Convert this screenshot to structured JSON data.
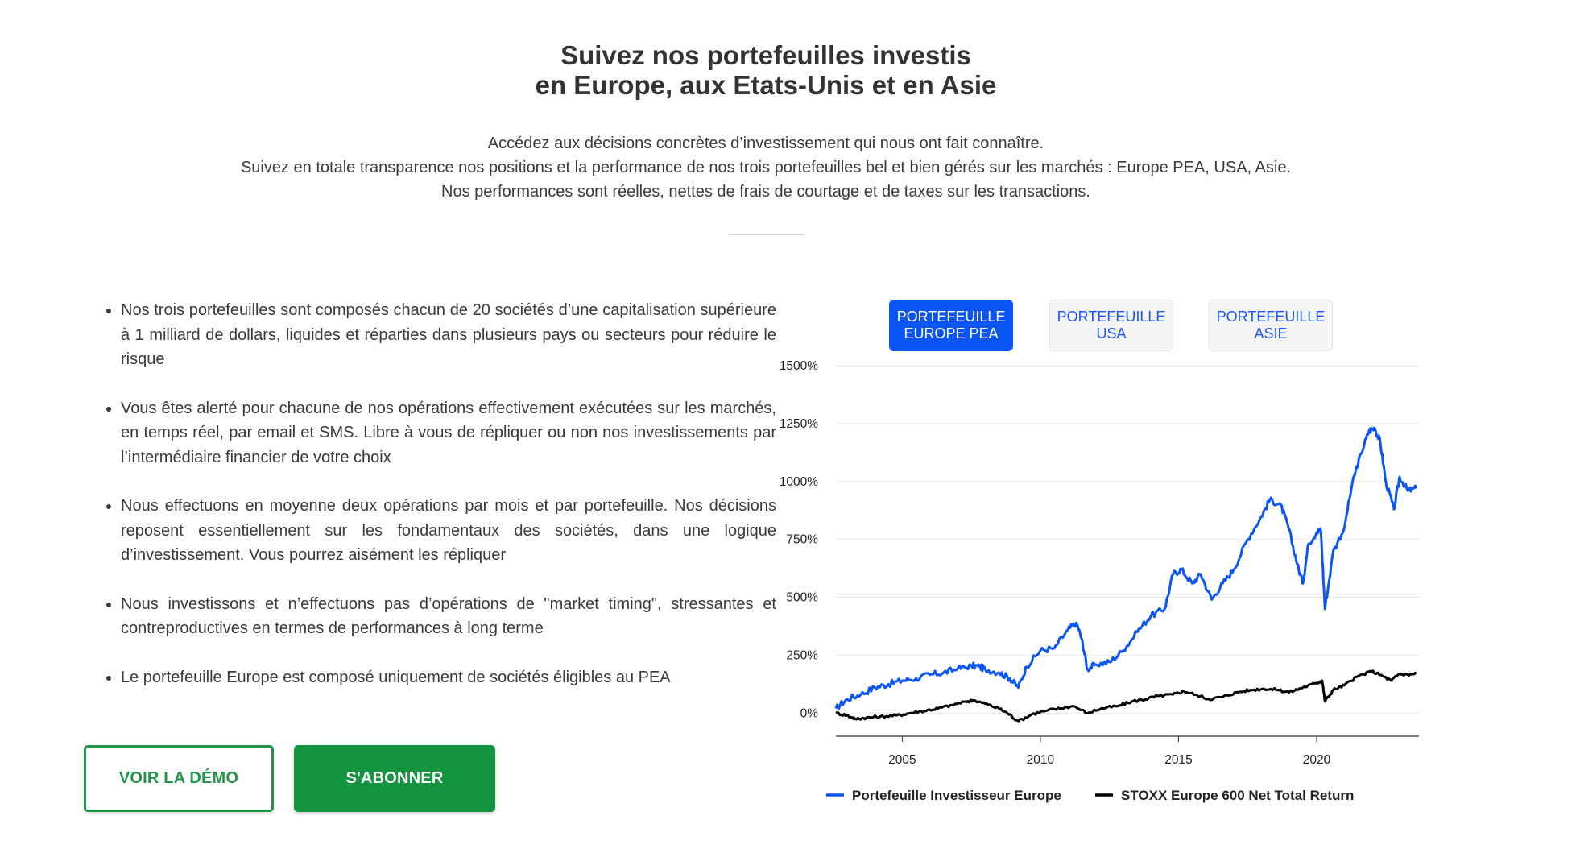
{
  "header": {
    "title_line1": "Suivez nos portefeuilles investis",
    "title_line2": "en Europe, aux Etats-Unis et en Asie"
  },
  "intro": {
    "line1": "Accédez aux décisions concrètes d’investissement qui nous ont fait connaître.",
    "line2": "Suivez en totale transparence nos positions et la performance de nos trois portefeuilles bel et bien gérés sur les marchés : Europe PEA, USA, Asie.",
    "line3": "Nos performances sont réelles, nettes de frais de courtage et de taxes sur les transactions."
  },
  "features": [
    "Nos trois portefeuilles sont composés chacun de 20 sociétés d’une capitalisation supérieure à 1 milliard de dollars, liquides et réparties dans plusieurs pays ou secteurs pour réduire le risque",
    "Vous êtes alerté pour chacune de nos opérations effectivement exécutées sur les marchés, en temps réel, par email et SMS. Libre à vous de répliquer ou non nos investissements par l’intermédiaire financier de votre choix",
    "Nous effectuons en moyenne deux opérations par mois et par portefeuille. Nos décisions reposent essentiellement sur les fondamentaux des sociétés, dans une logique d’investissement. Vous pourrez aisément les répliquer",
    "Nous investissons et n’effectuons pas d’opérations de \"market timing\", stressantes et contreproductives en termes de performances à long terme",
    "Le portefeuille Europe est composé uniquement de sociétés éligibles au PEA"
  ],
  "buttons": {
    "demo": "VOIR LA DÉMO",
    "subscribe": "S'ABONNER"
  },
  "tabs": [
    {
      "line1": "PORTEFEUILLE",
      "line2": "EUROPE PEA",
      "active": true
    },
    {
      "line1": "PORTEFEUILLE",
      "line2": "USA",
      "active": false
    },
    {
      "line1": "PORTEFEUILLE",
      "line2": "ASIE",
      "active": false
    }
  ],
  "colors": {
    "accent_green": "#13953f",
    "tab_active": "#0b55f5",
    "series_portfolio": "#0b55f5",
    "series_index": "#000000"
  },
  "chart_data": {
    "type": "line",
    "title": "",
    "xlabel": "",
    "ylabel": "",
    "xlim": [
      2002.6,
      2023.7
    ],
    "ylim": [
      -100,
      1500
    ],
    "x_ticks": [
      2005,
      2010,
      2015,
      2020
    ],
    "y_ticks": [
      {
        "value": 0,
        "label": "0%"
      },
      {
        "value": 250,
        "label": "250%"
      },
      {
        "value": 500,
        "label": "500%"
      },
      {
        "value": 750,
        "label": "750%"
      },
      {
        "value": 1000,
        "label": "1000%"
      },
      {
        "value": 1250,
        "label": "1250%"
      },
      {
        "value": 1500,
        "label": "1500%"
      }
    ],
    "grid": true,
    "legend_position": "bottom",
    "series": [
      {
        "name": "Portefeuille Investisseur Europe",
        "color": "#0b55f5",
        "points": [
          [
            2002.6,
            20
          ],
          [
            2003.0,
            60
          ],
          [
            2003.5,
            80
          ],
          [
            2004.0,
            110
          ],
          [
            2004.5,
            125
          ],
          [
            2005.0,
            140
          ],
          [
            2005.5,
            150
          ],
          [
            2006.0,
            165
          ],
          [
            2006.5,
            175
          ],
          [
            2007.0,
            190
          ],
          [
            2007.5,
            205
          ],
          [
            2007.8,
            200
          ],
          [
            2008.0,
            190
          ],
          [
            2008.5,
            175
          ],
          [
            2008.9,
            150
          ],
          [
            2009.2,
            110
          ],
          [
            2009.5,
            200
          ],
          [
            2010.0,
            270
          ],
          [
            2010.5,
            280
          ],
          [
            2011.0,
            360
          ],
          [
            2011.3,
            390
          ],
          [
            2011.5,
            320
          ],
          [
            2011.7,
            190
          ],
          [
            2012.0,
            210
          ],
          [
            2012.5,
            220
          ],
          [
            2013.0,
            270
          ],
          [
            2013.5,
            350
          ],
          [
            2014.0,
            420
          ],
          [
            2014.5,
            450
          ],
          [
            2014.8,
            600
          ],
          [
            2015.1,
            620
          ],
          [
            2015.5,
            560
          ],
          [
            2015.8,
            600
          ],
          [
            2016.2,
            490
          ],
          [
            2016.6,
            560
          ],
          [
            2017.0,
            620
          ],
          [
            2017.5,
            750
          ],
          [
            2018.0,
            850
          ],
          [
            2018.3,
            920
          ],
          [
            2018.7,
            900
          ],
          [
            2018.98,
            800
          ],
          [
            2019.3,
            640
          ],
          [
            2019.5,
            560
          ],
          [
            2019.7,
            730
          ],
          [
            2020.0,
            780
          ],
          [
            2020.15,
            790
          ],
          [
            2020.3,
            450
          ],
          [
            2020.6,
            700
          ],
          [
            2021.0,
            800
          ],
          [
            2021.3,
            1000
          ],
          [
            2021.6,
            1120
          ],
          [
            2021.9,
            1220
          ],
          [
            2022.1,
            1230
          ],
          [
            2022.3,
            1170
          ],
          [
            2022.5,
            1000
          ],
          [
            2022.8,
            880
          ],
          [
            2023.0,
            1020
          ],
          [
            2023.3,
            960
          ],
          [
            2023.6,
            970
          ]
        ]
      },
      {
        "name": "STOXX Europe 600 Net Total Return",
        "color": "#000000",
        "points": [
          [
            2002.6,
            0
          ],
          [
            2003.0,
            -10
          ],
          [
            2003.3,
            -25
          ],
          [
            2003.7,
            -20
          ],
          [
            2004.2,
            -15
          ],
          [
            2004.8,
            -10
          ],
          [
            2005.3,
            0
          ],
          [
            2005.8,
            10
          ],
          [
            2006.3,
            20
          ],
          [
            2006.8,
            35
          ],
          [
            2007.3,
            50
          ],
          [
            2007.6,
            55
          ],
          [
            2008.0,
            40
          ],
          [
            2008.5,
            20
          ],
          [
            2008.8,
            0
          ],
          [
            2009.2,
            -35
          ],
          [
            2009.7,
            -5
          ],
          [
            2010.2,
            10
          ],
          [
            2010.7,
            20
          ],
          [
            2011.2,
            30
          ],
          [
            2011.7,
            0
          ],
          [
            2012.2,
            20
          ],
          [
            2012.8,
            30
          ],
          [
            2013.3,
            50
          ],
          [
            2013.8,
            60
          ],
          [
            2014.3,
            75
          ],
          [
            2014.8,
            80
          ],
          [
            2015.2,
            95
          ],
          [
            2015.6,
            80
          ],
          [
            2016.1,
            60
          ],
          [
            2016.6,
            70
          ],
          [
            2017.1,
            90
          ],
          [
            2017.6,
            100
          ],
          [
            2018.1,
            105
          ],
          [
            2018.6,
            100
          ],
          [
            2019.0,
            90
          ],
          [
            2019.5,
            110
          ],
          [
            2020.0,
            130
          ],
          [
            2020.2,
            140
          ],
          [
            2020.3,
            50
          ],
          [
            2020.6,
            100
          ],
          [
            2021.0,
            120
          ],
          [
            2021.5,
            160
          ],
          [
            2022.0,
            180
          ],
          [
            2022.3,
            165
          ],
          [
            2022.7,
            140
          ],
          [
            2023.0,
            170
          ],
          [
            2023.3,
            165
          ],
          [
            2023.6,
            170
          ]
        ]
      }
    ]
  }
}
